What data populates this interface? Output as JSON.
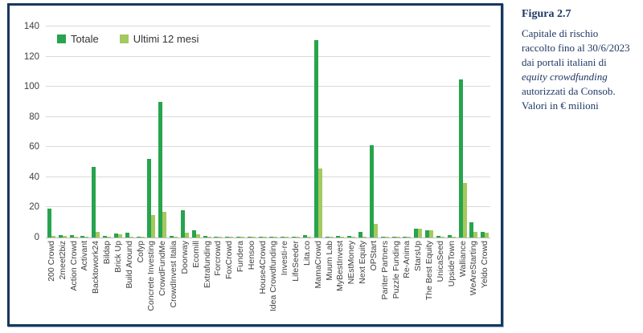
{
  "caption": {
    "title": "Figura 2.7",
    "lines": [
      "Capitale di rischio",
      "raccolto fino al 30/6/2023",
      "dai portali italiani di",
      "equity crowdfunding",
      "autorizzati da Consob.",
      "Valori in € milioni"
    ],
    "italic_line_index": 3
  },
  "colors": {
    "totale": "#27a44d",
    "ultimi_12_mesi": "#a4c95e",
    "frame_border": "#17375e",
    "caption_text": "#1f3864",
    "gridline": "#d9d9d9",
    "axis_text": "#404040"
  },
  "chart_data": {
    "type": "bar",
    "title": "",
    "xlabel": "",
    "ylabel": "",
    "ylim": [
      0,
      140
    ],
    "yticks": [
      0,
      20,
      40,
      60,
      80,
      100,
      120,
      140
    ],
    "grid": true,
    "legend_position": "top-left",
    "categories": [
      "200 Crowd",
      "2meet2biz",
      "Action Crowd",
      "Activant",
      "Backtowork24",
      "Bildap",
      "Brick Up",
      "Build Around",
      "Cofyp",
      "Concrete Investing",
      "CrowdFundMe",
      "CrowdInvest Italia",
      "Doorway",
      "Ecomill",
      "Extrafunding",
      "Forcrowd",
      "FoxCrowd",
      "Fundera",
      "Hensoo",
      "House4Crowd",
      "Idea Crowdfunding",
      "Investi-re",
      "LifeSeeder",
      "Lita.co",
      "MamaCrowd",
      "Muum Lab",
      "MyBestInvest",
      "NEstMoney",
      "Next Equity",
      "OPStart",
      "Pariter Partners",
      "Puzzle Funding",
      "Re-Anima",
      "StarsUp",
      "The Best Equity",
      "UnicaSeed",
      "UpsideTown",
      "Walliance",
      "WeAreStarting",
      "Yeldo Crowd"
    ],
    "series": [
      {
        "name": "Totale",
        "color": "#27a44d",
        "values": [
          19,
          1.5,
          1.5,
          1,
          47,
          1.2,
          2.5,
          3,
          0.3,
          52,
          90,
          1,
          18,
          5,
          1,
          0.5,
          0.4,
          0.8,
          0.8,
          0.8,
          0.3,
          0.3,
          0.4,
          1.8,
          131,
          0.6,
          1,
          0.9,
          4,
          61,
          0.8,
          0.3,
          0.2,
          6,
          5,
          1,
          1.5,
          105,
          10,
          3.5
        ]
      },
      {
        "name": "Ultimi 12 mesi",
        "color": "#a4c95e",
        "values": [
          1,
          1,
          0.5,
          0.3,
          4,
          0.4,
          2,
          0.5,
          0.2,
          15,
          17,
          0.3,
          3,
          2,
          0.3,
          0.2,
          0.2,
          0.3,
          0.2,
          0.4,
          0.1,
          0.1,
          0.2,
          0.4,
          46,
          0.2,
          0.3,
          0.3,
          0.4,
          9,
          0.3,
          0.1,
          0.1,
          6,
          5,
          0.1,
          0.5,
          36,
          3.5,
          3
        ]
      }
    ]
  }
}
